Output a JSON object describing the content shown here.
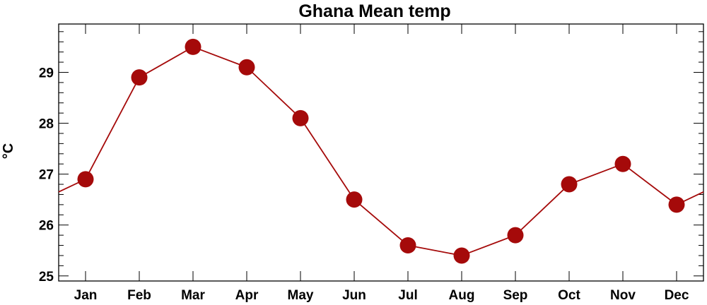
{
  "chart_data": {
    "type": "line",
    "title": "Ghana Mean temp",
    "xlabel": "",
    "ylabel": "°C",
    "categories": [
      "Jan",
      "Feb",
      "Mar",
      "Apr",
      "May",
      "Jun",
      "Jul",
      "Aug",
      "Sep",
      "Oct",
      "Nov",
      "Dec"
    ],
    "series": [
      {
        "values": [
          26.9,
          28.9,
          29.5,
          29.1,
          28.1,
          26.5,
          25.6,
          25.4,
          25.8,
          26.8,
          27.2,
          26.4
        ],
        "color": "#a50a0a"
      }
    ],
    "ylim": [
      24.9,
      29.95
    ],
    "yticks": [
      25,
      26,
      27,
      28,
      29
    ],
    "grid": false,
    "legend": "none"
  }
}
